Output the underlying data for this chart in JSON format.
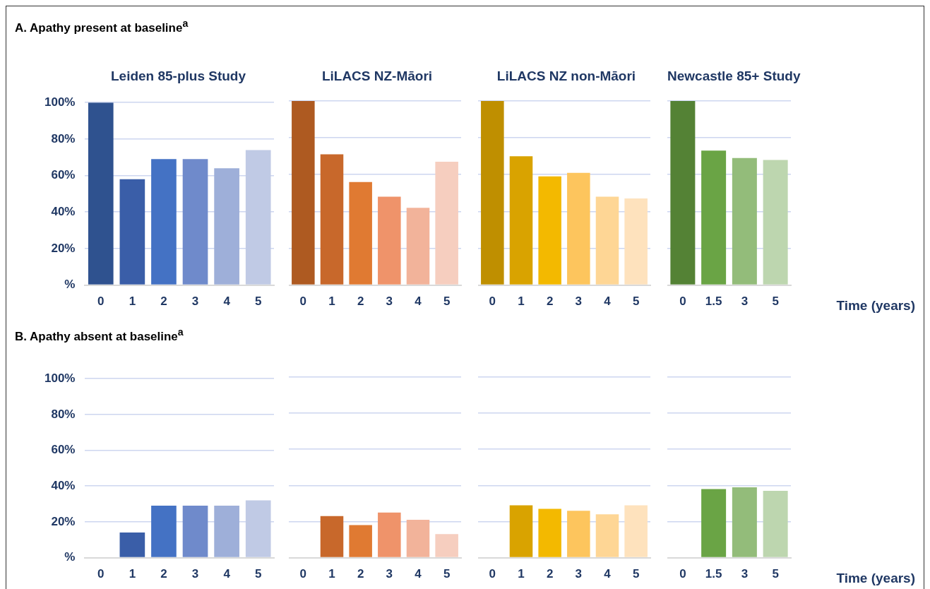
{
  "chart_data": [
    {
      "type": "bar",
      "title": "A. Apathy present at baseline$^{a}$",
      "subtitle": "Leiden 85-plus Study",
      "categories": [
        "0",
        "1",
        "2",
        "3",
        "4",
        "5"
      ],
      "values": [
        100,
        58,
        69,
        69,
        64,
        74
      ],
      "colors": [
        "#2f528f",
        "#3a5ea8",
        "#4472c4",
        "#6f8acb",
        "#9eafd9",
        "#c0cae5"
      ],
      "ylim": [
        0,
        100
      ],
      "yticks": [
        {
          "value": 0,
          "label": "%"
        },
        {
          "value": 20,
          "label": "20%"
        },
        {
          "value": 40,
          "label": "40%"
        },
        {
          "value": 60,
          "label": "60%"
        },
        {
          "value": 80,
          "label": "80%"
        },
        {
          "value": 100,
          "label": "100%"
        }
      ],
      "grid": "y"
    },
    {
      "type": "bar",
      "subtitle": "LiLACS NZ-Māori",
      "categories": [
        "0",
        "1",
        "2",
        "3",
        "4",
        "5"
      ],
      "values": [
        100,
        71,
        56,
        48,
        42,
        67
      ],
      "colors": [
        "#ae5a21",
        "#c8682b",
        "#e07a32",
        "#ef936a",
        "#f2b39a",
        "#f6cebf"
      ],
      "ylim": [
        0,
        100
      ],
      "yticks": [
        0,
        20,
        40,
        60,
        80,
        100
      ],
      "grid": "y",
      "tick_labels": "x"
    },
    {
      "type": "bar",
      "subtitle": "LiLACS NZ non-Māori",
      "categories": [
        "0",
        "1",
        "2",
        "3",
        "4",
        "5"
      ],
      "values": [
        100,
        70,
        59,
        61,
        48,
        47
      ],
      "colors": [
        "#bf8f00",
        "#d9a300",
        "#f3b900",
        "#fdc55d",
        "#fed695",
        "#fee2bd"
      ],
      "ylim": [
        0,
        100
      ],
      "yticks": [
        0,
        20,
        40,
        60,
        80,
        100
      ],
      "grid": "y",
      "tick_labels": "x"
    },
    {
      "type": "bar",
      "subtitle": "Newcastle 85+ Study",
      "xlabel": "Time (years)",
      "categories": [
        "0",
        "1.5",
        "3",
        "5"
      ],
      "values": [
        100,
        73,
        69,
        68
      ],
      "colors": [
        "#548235",
        "#6aa445",
        "#93bc7a",
        "#bdd6af"
      ],
      "ylim": [
        0,
        100
      ],
      "yticks": [
        0,
        20,
        40,
        60,
        80,
        100
      ],
      "grid": "y",
      "tick_labels": "x"
    },
    {
      "type": "bar",
      "title": "B. Apathy absent at baseline$^{a}$",
      "categories": [
        "0",
        "1",
        "2",
        "3",
        "4",
        "5"
      ],
      "values": [
        0,
        14,
        29,
        29,
        29,
        32
      ],
      "colors": [
        "#2f528f",
        "#3a5ea8",
        "#4472c4",
        "#6f8acb",
        "#9eafd9",
        "#c0cae5"
      ],
      "ylim": [
        0,
        100
      ],
      "yticks": [
        {
          "value": 0,
          "label": "%"
        },
        {
          "value": 20,
          "label": "20%"
        },
        {
          "value": 40,
          "label": "40%"
        },
        {
          "value": 60,
          "label": "60%"
        },
        {
          "value": 80,
          "label": "80%"
        },
        {
          "value": 100,
          "label": "100%"
        }
      ],
      "grid": "y"
    },
    {
      "type": "bar",
      "categories": [
        "0",
        "1",
        "2",
        "3",
        "4",
        "5"
      ],
      "values": [
        0,
        23,
        18,
        25,
        21,
        13
      ],
      "colors": [
        "#ae5a21",
        "#c8682b",
        "#e07a32",
        "#ef936a",
        "#f2b39a",
        "#f6cebf"
      ],
      "ylim": [
        0,
        100
      ],
      "yticks": [
        0,
        20,
        40,
        60,
        80,
        100
      ],
      "grid": "y",
      "tick_labels": "x"
    },
    {
      "type": "bar",
      "categories": [
        "0",
        "1",
        "2",
        "3",
        "4",
        "5"
      ],
      "values": [
        0,
        29,
        27,
        26,
        24,
        29
      ],
      "colors": [
        "#bf8f00",
        "#d9a300",
        "#f3b900",
        "#fdc55d",
        "#fed695",
        "#fee2bd"
      ],
      "ylim": [
        0,
        100
      ],
      "yticks": [
        0,
        20,
        40,
        60,
        80,
        100
      ],
      "grid": "y",
      "tick_labels": "x"
    },
    {
      "type": "bar",
      "xlabel": "Time (years)",
      "categories": [
        "0",
        "1.5",
        "3",
        "5"
      ],
      "values": [
        0,
        38,
        39,
        37
      ],
      "colors": [
        "#548235",
        "#6aa445",
        "#93bc7a",
        "#bdd6af"
      ],
      "ylim": [
        0,
        100
      ],
      "yticks": [
        0,
        20,
        40,
        60,
        80,
        100
      ],
      "grid": "y",
      "tick_labels": "x"
    }
  ]
}
